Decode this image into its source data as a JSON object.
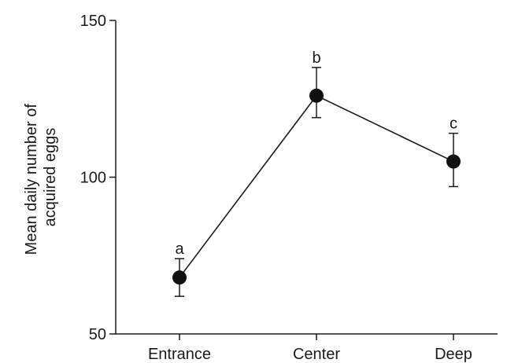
{
  "chart_data": {
    "type": "line",
    "categories": [
      "Entrance",
      "Center",
      "Deep"
    ],
    "series": [
      {
        "values": [
          68,
          126,
          105
        ],
        "error_upper": [
          74,
          135,
          114
        ],
        "error_lower": [
          62,
          119,
          97
        ],
        "point_labels": [
          "a",
          "b",
          "c"
        ]
      }
    ],
    "xlabel": "",
    "ylabel_lines": [
      "Mean daily number of",
      "acquired eggs"
    ],
    "ylim": [
      50,
      150
    ],
    "yticks": [
      50,
      100,
      150
    ],
    "grid": false,
    "legend": "none"
  }
}
